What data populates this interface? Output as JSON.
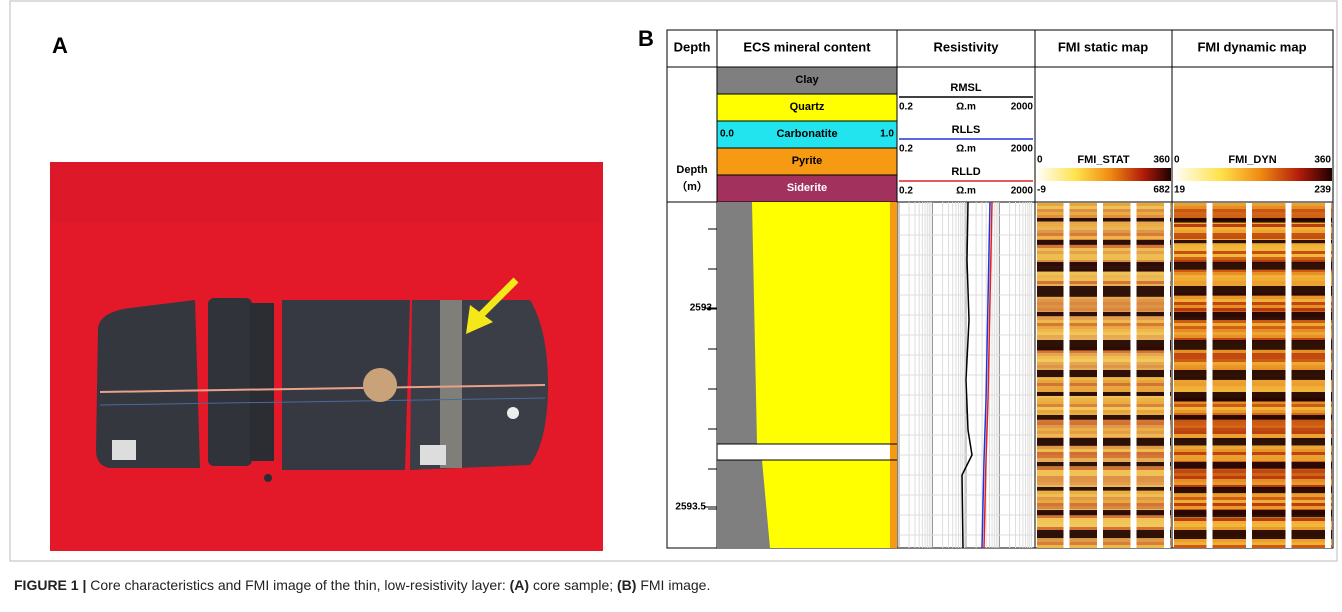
{
  "panel_a": {
    "label": "A"
  },
  "panel_b": {
    "label": "B",
    "headers": [
      "Depth",
      "ECS mineral content",
      "Resistivity",
      "FMI static map",
      "FMI dynamic map"
    ],
    "depth_label": {
      "title": "Depth",
      "unit": "（m）"
    },
    "depth_ticks": [
      "2593",
      "2593.5"
    ],
    "ecs_legend": {
      "minerals": [
        "Clay",
        "Quartz",
        "Carbonatite",
        "Pyrite",
        "Siderite"
      ],
      "scale_min": "0.0",
      "scale_max": "1.0"
    },
    "resistivity_curves": [
      {
        "name": "RMSL",
        "min": "0.2",
        "unit": "Ω.m",
        "max": "2000"
      },
      {
        "name": "RLLS",
        "min": "0.2",
        "unit": "Ω.m",
        "max": "2000"
      },
      {
        "name": "RLLD",
        "min": "0.2",
        "unit": "Ω.m",
        "max": "2000"
      }
    ],
    "fmi_static": {
      "name": "FMI_STAT",
      "scale_min": "0",
      "scale_max": "360",
      "range_min": "-9",
      "range_max": "682"
    },
    "fmi_dynamic": {
      "name": "FMI_DYN",
      "scale_min": "0",
      "scale_max": "360",
      "range_min": "19",
      "range_max": "239"
    }
  },
  "caption": {
    "figure": "FIGURE 1 |",
    "text": "Core characteristics and FMI image of the thin, low-resistivity layer:",
    "a_label": "(A)",
    "a_text": "core sample;",
    "b_label": "(B)",
    "b_text": "FMI image."
  }
}
